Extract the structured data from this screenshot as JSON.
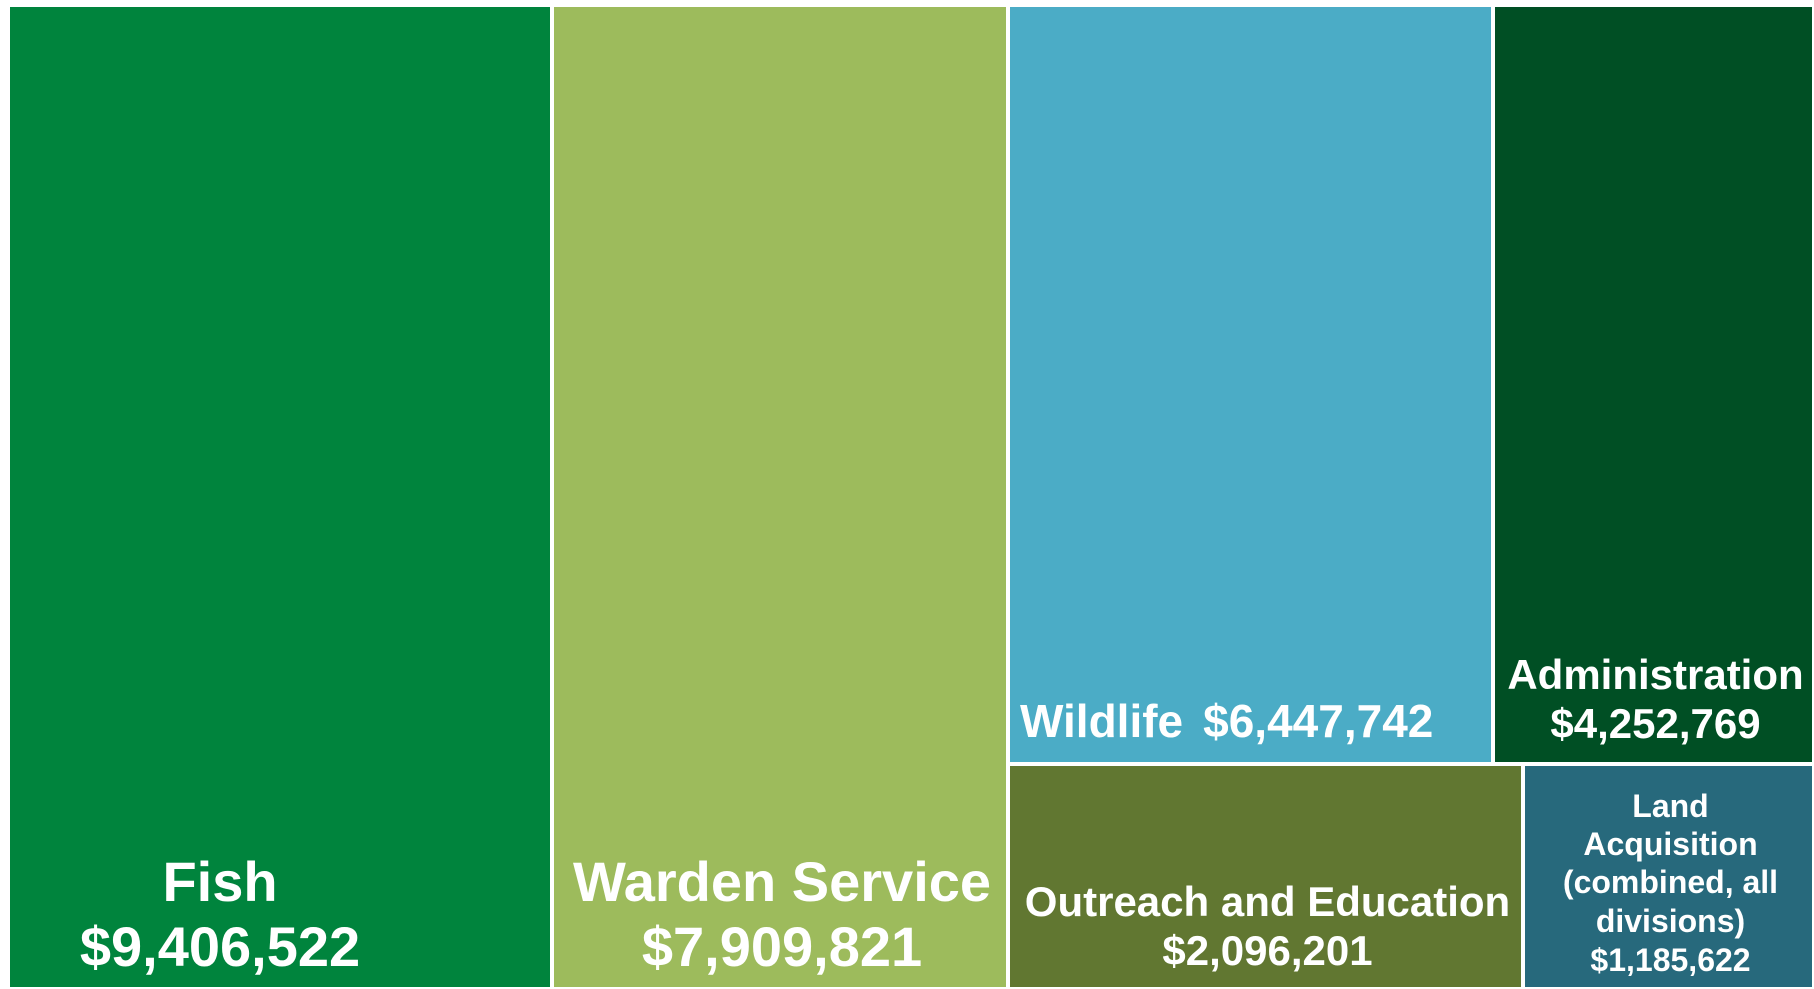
{
  "chart_data": {
    "type": "treemap",
    "items": [
      {
        "name": "Fish",
        "value": 9406522,
        "value_label": "$9,406,522",
        "color": "#00843D"
      },
      {
        "name": "Warden Service",
        "value": 7909821,
        "value_label": "$7,909,821",
        "color": "#9DBB5C"
      },
      {
        "name": "Wildlife",
        "value": 6447742,
        "value_label": "$6,447,742",
        "color": "#4BACC6"
      },
      {
        "name": "Administration",
        "value": 4252769,
        "value_label": "$4,252,769",
        "color": "#004F24"
      },
      {
        "name": "Outreach and Education",
        "value": 2096201,
        "value_label": "$2,096,201",
        "color": "#617731"
      },
      {
        "name": "Land Acquisition (combined, all divisions)",
        "value": 1185622,
        "value_label": "$1,185,622",
        "color": "#27697C"
      }
    ]
  }
}
